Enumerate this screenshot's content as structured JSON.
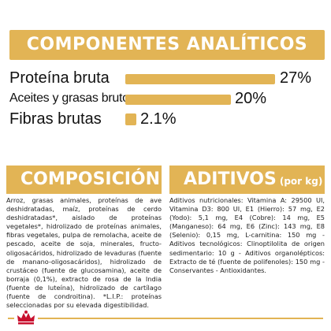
{
  "analytics": {
    "title": "COMPONENTES ANALÍTICOS",
    "rows": [
      {
        "label": "Proteína bruta",
        "value_text": "27%",
        "percent": 27
      },
      {
        "label": "Aceites y grasas brutos",
        "value_text": "20%",
        "percent": 20
      },
      {
        "label": "Fibras brutas",
        "value_text": "2.1%",
        "percent": 2.1
      }
    ]
  },
  "composition": {
    "title": "COMPOSICIÓN",
    "text": "Arroz, grasas animales, proteínas de ave deshidratadas, maíz, proteínas de cerdo deshidratadas*, aislado de proteínas vegetales*, hidrolizado de proteínas animales, fibras vegetales, pulpa de remolacha, aceite de pescado, aceite de soja, minerales, fructo-oligosacáridos, hidrolizado de levaduras (fuente de manano-oligosacáridos), hidrolizado de crustáceo (fuente de glucosamina), aceite de borraja (0,1%), extracto de rosa de la India (fuente de luteína), hidrolizado de cartílago (fuente de condroitina). *L.I.P.: proteínas seleccionadas por su elevada digestibilidad."
  },
  "additives": {
    "title": "ADITIVOS",
    "subtitle": "(por kg)",
    "text": "Aditivos nutricionales: Vitamina A: 29500 UI, Vitamina D3: 800 UI, E1 (Hierro): 57 mg, E2 (Yodo): 5,1 mg, E4 (Cobre): 14 mg, E5 (Manganeso): 64 mg, E6 (Zinc): 143 mg, E8 (Selenio): 0,15 mg, L-carnitina: 150 mg - Aditivos tecnológicos: Clinoptilolita de origen sedimentario: 10 g - Aditivos organolépticos: Extracto de té (fuente de polifenoles): 150 mg - Conservantes - Antioxidantes."
  },
  "colors": {
    "accent": "#e2b455",
    "logo_red": "#c8102e"
  }
}
